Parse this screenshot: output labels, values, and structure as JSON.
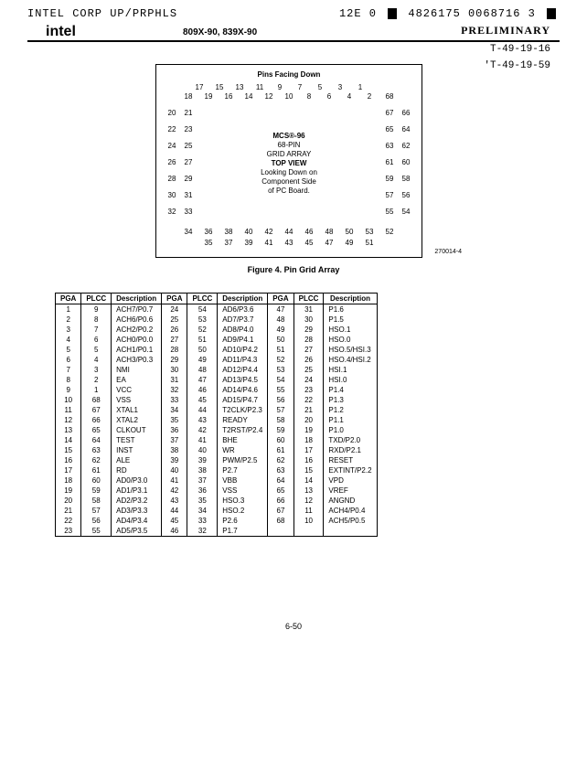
{
  "header": {
    "corp": "INTEL CORP  UP/PRPHLS",
    "code_left": "12E 0",
    "code_right": "4826175 0068716 3",
    "logo": "intel",
    "mid": "809X-90, 839X-90",
    "prelim": "PRELIMINARY",
    "t1": "T-49-19-16",
    "t2": "'T-49-19-59",
    "decor": "· ·  ·· · ·"
  },
  "pin_grid": {
    "pins_facing": "Pins Facing Down",
    "top_row1": [
      "17",
      "15",
      "13",
      "11",
      "9",
      "7",
      "5",
      "3",
      "1"
    ],
    "top_row2": [
      "18",
      "19",
      "16",
      "14",
      "12",
      "10",
      "8",
      "6",
      "4",
      "2",
      "68"
    ],
    "left_pairs": [
      [
        "20",
        "21"
      ],
      [
        "22",
        "23"
      ],
      [
        "24",
        "25"
      ],
      [
        "26",
        "27"
      ],
      [
        "28",
        "29"
      ],
      [
        "30",
        "31"
      ],
      [
        "32",
        "33"
      ]
    ],
    "right_pairs": [
      [
        "67",
        "66"
      ],
      [
        "65",
        "64"
      ],
      [
        "63",
        "62"
      ],
      [
        "61",
        "60"
      ],
      [
        "59",
        "58"
      ],
      [
        "57",
        "56"
      ],
      [
        "55",
        "54"
      ]
    ],
    "bot_row1": [
      "34",
      "36",
      "38",
      "40",
      "42",
      "44",
      "46",
      "48",
      "50",
      "53",
      "52"
    ],
    "bot_row2": [
      "35",
      "37",
      "39",
      "41",
      "43",
      "45",
      "47",
      "49",
      "51"
    ],
    "center": [
      "MCS®-96",
      "68-PIN",
      "GRID ARRAY",
      "",
      "TOP VIEW",
      "Looking Down on",
      "Component Side",
      "of PC Board."
    ],
    "ref": "270014-4",
    "caption": "Figure 4. Pin Grid Array"
  },
  "table": {
    "headers": [
      "PGA",
      "PLCC",
      "Description",
      "PGA",
      "PLCC",
      "Description",
      "PGA",
      "PLCC",
      "Description"
    ],
    "rows": [
      [
        "1",
        "9",
        "ACH7/P0.7",
        "24",
        "54",
        "AD6/P3.6",
        "47",
        "31",
        "P1.6"
      ],
      [
        "2",
        "8",
        "ACH6/P0.6",
        "25",
        "53",
        "AD7/P3.7",
        "48",
        "30",
        "P1.5"
      ],
      [
        "3",
        "7",
        "ACH2/P0.2",
        "26",
        "52",
        "AD8/P4.0",
        "49",
        "29",
        "HSO.1"
      ],
      [
        "4",
        "6",
        "ACH0/P0.0",
        "27",
        "51",
        "AD9/P4.1",
        "50",
        "28",
        "HSO.0"
      ],
      [
        "5",
        "5",
        "ACH1/P0.1",
        "28",
        "50",
        "AD10/P4.2",
        "51",
        "27",
        "HSO.5/HSI.3"
      ],
      [
        "6",
        "4",
        "ACH3/P0.3",
        "29",
        "49",
        "AD11/P4.3",
        "52",
        "26",
        "HSO.4/HSI.2"
      ],
      [
        "7",
        "3",
        "NMI",
        "30",
        "48",
        "AD12/P4.4",
        "53",
        "25",
        "HSI.1"
      ],
      [
        "8",
        "2",
        "EA",
        "31",
        "47",
        "AD13/P4.5",
        "54",
        "24",
        "HSI.0"
      ],
      [
        "9",
        "1",
        "VCC",
        "32",
        "46",
        "AD14/P4.6",
        "55",
        "23",
        "P1.4"
      ],
      [
        "10",
        "68",
        "VSS",
        "33",
        "45",
        "AD15/P4.7",
        "56",
        "22",
        "P1.3"
      ],
      [
        "11",
        "67",
        "XTAL1",
        "34",
        "44",
        "T2CLK/P2.3",
        "57",
        "21",
        "P1.2"
      ],
      [
        "12",
        "66",
        "XTAL2",
        "35",
        "43",
        "READY",
        "58",
        "20",
        "P1.1"
      ],
      [
        "13",
        "65",
        "CLKOUT",
        "36",
        "42",
        "T2RST/P2.4",
        "59",
        "19",
        "P1.0"
      ],
      [
        "14",
        "64",
        "TEST",
        "37",
        "41",
        "BHE",
        "60",
        "18",
        "TXD/P2.0"
      ],
      [
        "15",
        "63",
        "INST",
        "38",
        "40",
        "WR",
        "61",
        "17",
        "RXD/P2.1"
      ],
      [
        "16",
        "62",
        "ALE",
        "39",
        "39",
        "PWM/P2.5",
        "62",
        "16",
        "RESET"
      ],
      [
        "17",
        "61",
        "RD",
        "40",
        "38",
        "P2.7",
        "63",
        "15",
        "EXTINT/P2.2"
      ],
      [
        "18",
        "60",
        "AD0/P3.0",
        "41",
        "37",
        "VBB",
        "64",
        "14",
        "VPD"
      ],
      [
        "19",
        "59",
        "AD1/P3.1",
        "42",
        "36",
        "VSS",
        "65",
        "13",
        "VREF"
      ],
      [
        "20",
        "58",
        "AD2/P3.2",
        "43",
        "35",
        "HSO.3",
        "66",
        "12",
        "ANGND"
      ],
      [
        "21",
        "57",
        "AD3/P3.3",
        "44",
        "34",
        "HSO.2",
        "67",
        "11",
        "ACH4/P0.4"
      ],
      [
        "22",
        "56",
        "AD4/P3.4",
        "45",
        "33",
        "P2.6",
        "68",
        "10",
        "ACH5/P0.5"
      ],
      [
        "23",
        "55",
        "AD5/P3.5",
        "46",
        "32",
        "P1.7",
        "",
        "",
        ""
      ]
    ]
  },
  "page_number": "6-50"
}
